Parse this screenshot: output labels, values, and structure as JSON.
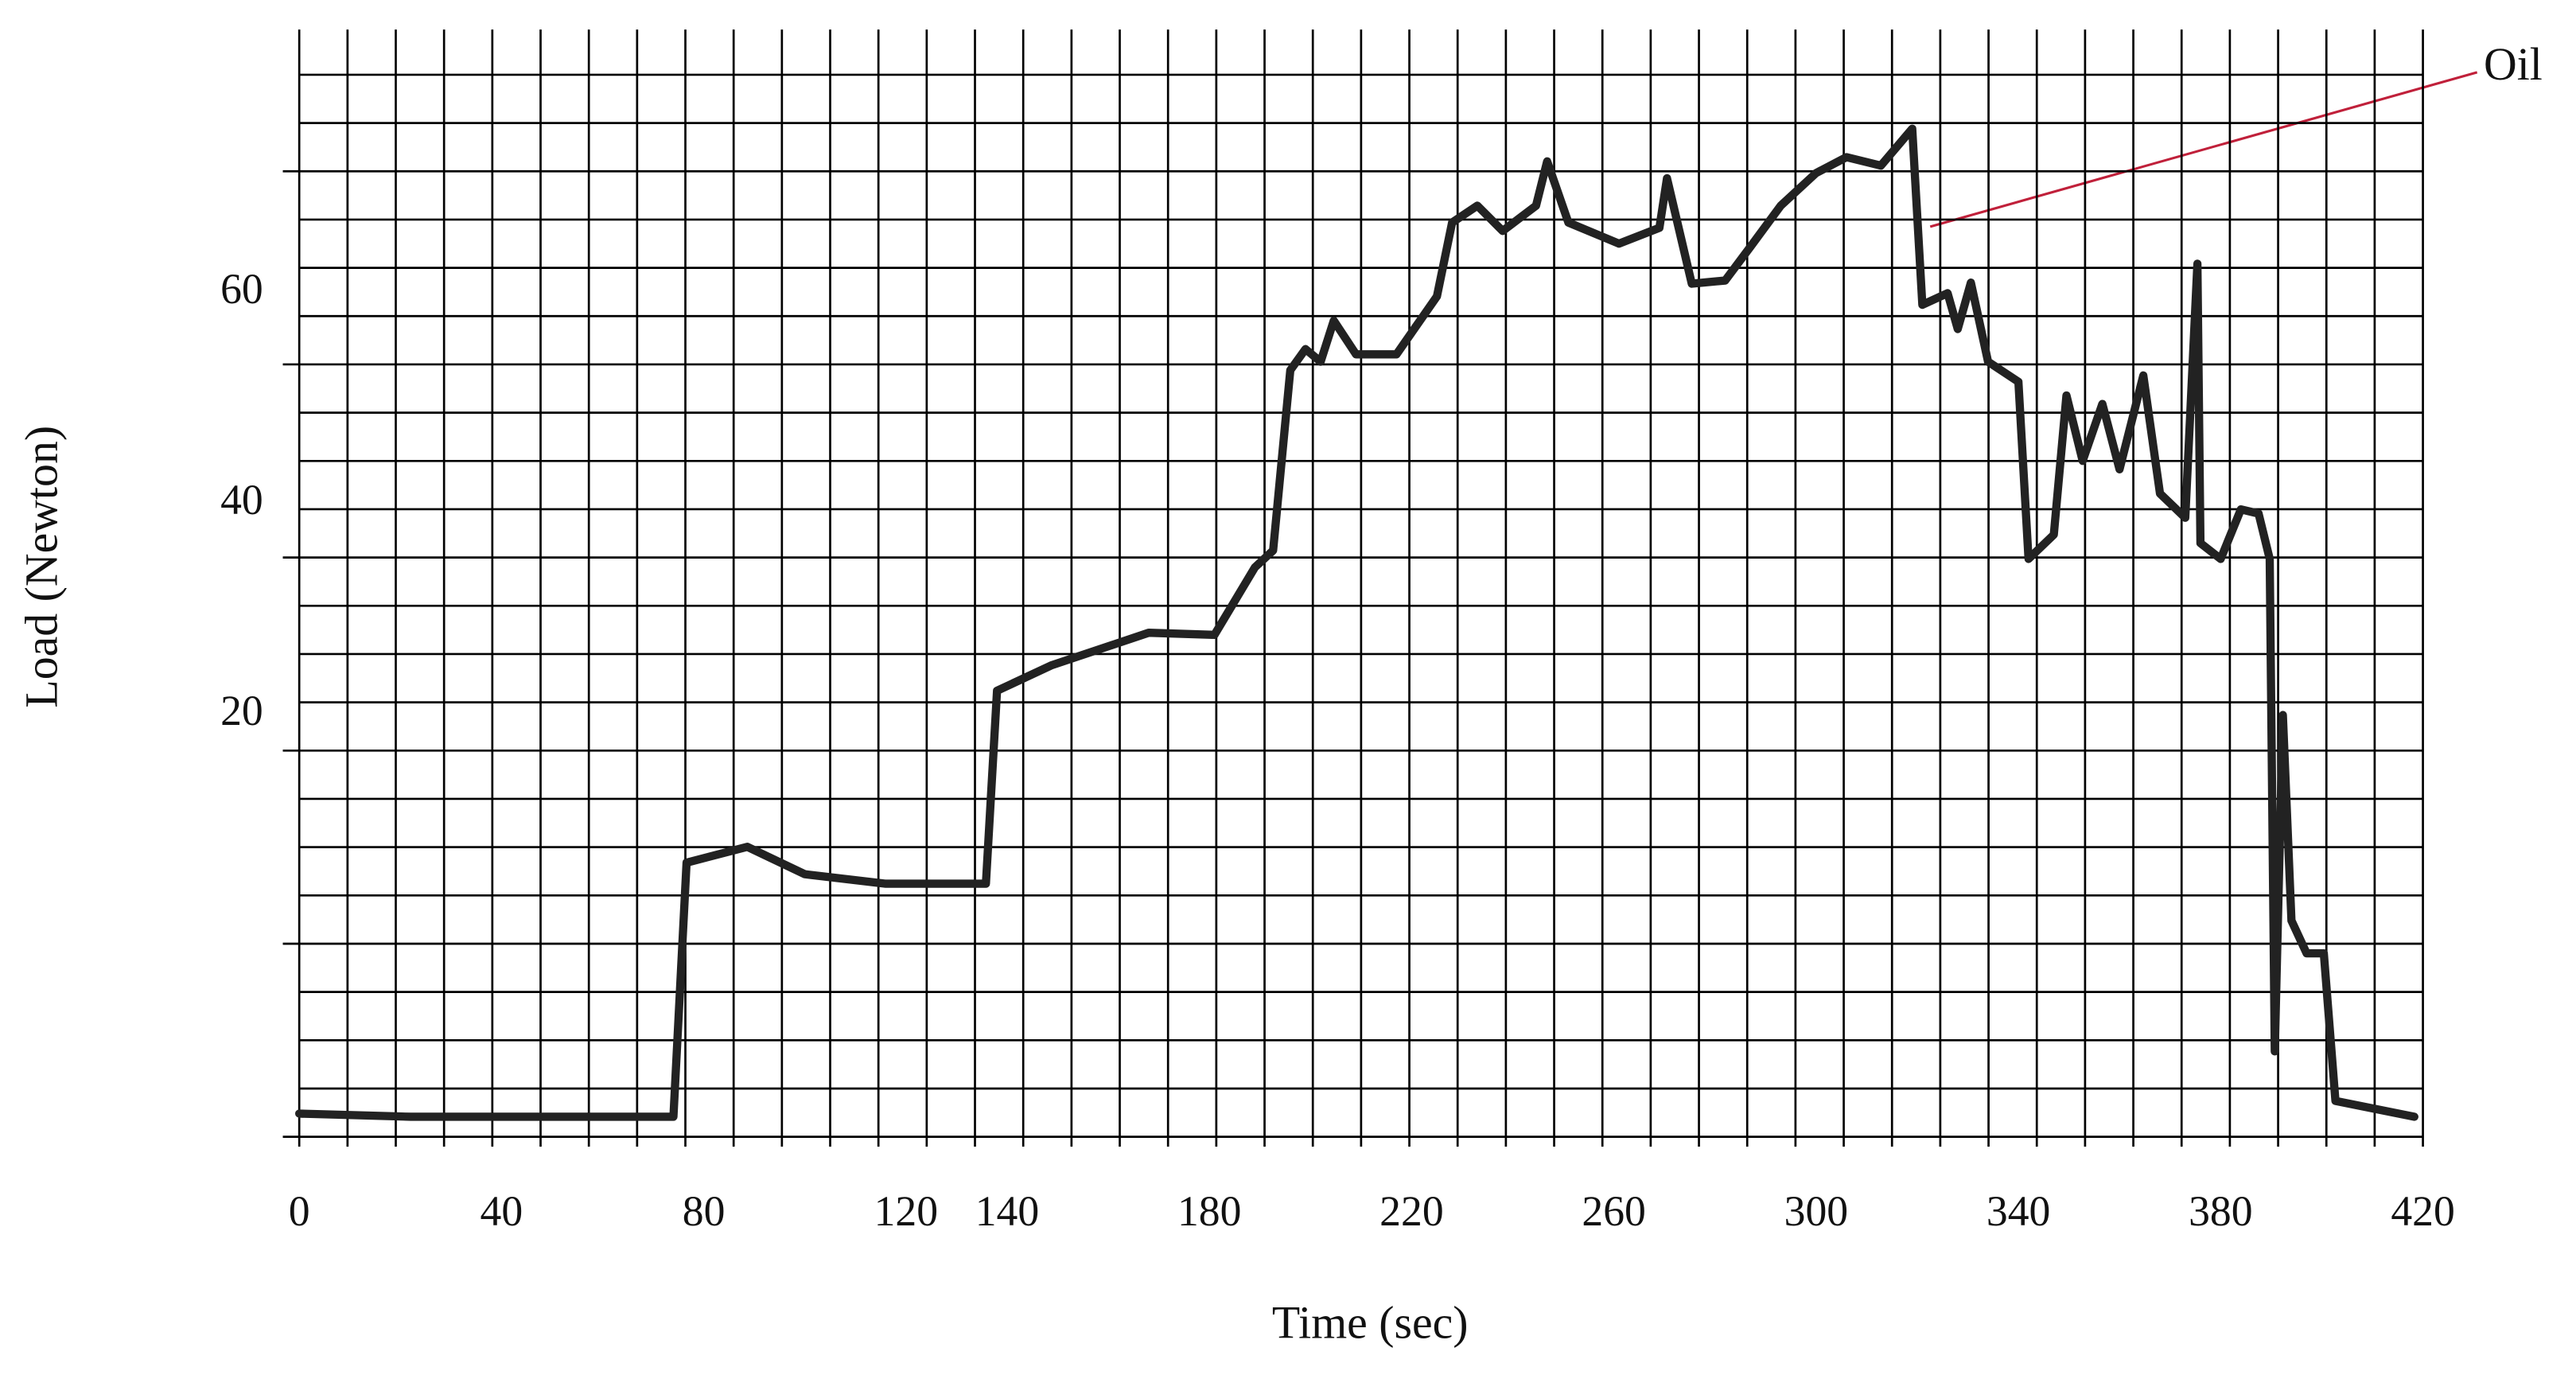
{
  "chart_data": {
    "type": "line",
    "xlabel": "Time (sec)",
    "ylabel": "Load (Newton)",
    "annotation": "Oil",
    "xlim": [
      0,
      420
    ],
    "ylim": [
      -20,
      85
    ],
    "xticks": [
      0,
      40,
      80,
      120,
      140,
      180,
      220,
      260,
      300,
      340,
      380,
      420
    ],
    "yticks": [
      20,
      40,
      60
    ],
    "grid": true,
    "series": [
      {
        "color": "#222222",
        "x": [
          0,
          22,
          74,
          76.6,
          88.6,
          100,
          116,
          135.8,
          138,
          148.7,
          168,
          181,
          189,
          192.6,
          196,
          199,
          202,
          204.6,
          209,
          217,
          225,
          228,
          233,
          238,
          244.6,
          246.8,
          251,
          261,
          269,
          270.5,
          275.4,
          282,
          287,
          293,
          300,
          306,
          312.8,
          319,
          321,
          326,
          328,
          330.6,
          334,
          340,
          342,
          347,
          349.5,
          352.7,
          356.6,
          360,
          364.7,
          368,
          373,
          375.4,
          376,
          380,
          384,
          387.5,
          389.7,
          390.7,
          392.3,
          394,
          397,
          400.4,
          402.7,
          418.3
        ],
        "values": [
          -17.8,
          -18.1,
          -18.1,
          6,
          7.5,
          4.9,
          4,
          4,
          22.3,
          24.7,
          27.8,
          27.6,
          34,
          35.6,
          52.7,
          54.7,
          53.5,
          57.4,
          54.2,
          54.2,
          59.7,
          66.7,
          68.3,
          65.9,
          68.3,
          72.5,
          66.7,
          64.7,
          66.2,
          70.9,
          60.9,
          61.2,
          64.4,
          68.3,
          71.4,
          72.9,
          72.1,
          75.6,
          58.9,
          60,
          56.6,
          61,
          53.5,
          51.6,
          34.8,
          37.1,
          50.3,
          44.1,
          49.5,
          43.3,
          52.2,
          41,
          38.7,
          62.8,
          36.3,
          34.8,
          39.5,
          39.1,
          34.8,
          -11.9,
          20,
          0.5,
          -2.6,
          -2.6,
          -16.6,
          -18.1
        ]
      }
    ]
  }
}
